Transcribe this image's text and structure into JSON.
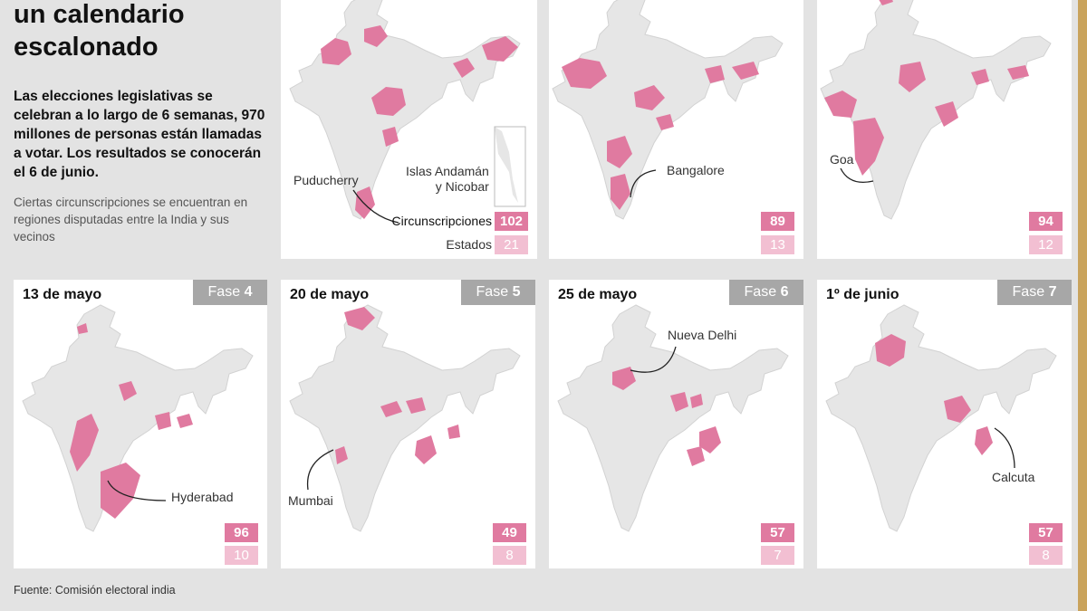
{
  "title": "un calendario escalonado",
  "lead": "Las elecciones legislativas se celebran a lo largo de 6 semanas, 970 millones de personas están llamadas a votar. Los resultados  se conocerán el 6 de junio.",
  "note": "Ciertas circunscripciones se encuentran en regiones disputadas entre la India y sus vecinos",
  "source": "Fuente: Comisión electoral india",
  "legend": {
    "constituencies": "Circunscripciones",
    "states": "Estados"
  },
  "phase_word": "Fase",
  "colors": {
    "constituency": "#e07aa0",
    "state": "#f2bfd2",
    "map": "#e6e6e6",
    "fase_bg": "#a7a7a7"
  },
  "phases": [
    {
      "id": 1,
      "date": "",
      "constituencies": "102",
      "states": "21",
      "labels": [
        "Puducherry",
        "Islas Andamán\ny Nicobar"
      ]
    },
    {
      "id": 2,
      "date": "",
      "constituencies": "89",
      "states": "13",
      "labels": [
        "Bangalore"
      ]
    },
    {
      "id": 3,
      "date": "",
      "constituencies": "94",
      "states": "12",
      "labels": [
        "Goa"
      ]
    },
    {
      "id": 4,
      "date": "13 de mayo",
      "fase": "4",
      "constituencies": "96",
      "states": "10",
      "labels": [
        "Hyderabad"
      ]
    },
    {
      "id": 5,
      "date": "20 de mayo",
      "fase": "5",
      "constituencies": "49",
      "states": "8",
      "labels": [
        "Mumbai"
      ]
    },
    {
      "id": 6,
      "date": "25 de mayo",
      "fase": "6",
      "constituencies": "57",
      "states": "7",
      "labels": [
        "Nueva Delhi"
      ]
    },
    {
      "id": 7,
      "date": "1º de junio",
      "fase": "7",
      "constituencies": "57",
      "states": "8",
      "labels": [
        "Calcuta"
      ]
    }
  ]
}
